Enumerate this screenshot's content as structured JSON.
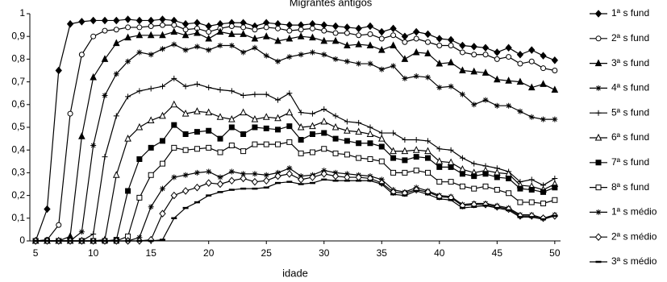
{
  "chart_data": {
    "type": "line",
    "title": "Migrantes antigos",
    "xlabel": "idade",
    "x": [
      5,
      6,
      7,
      8,
      9,
      10,
      11,
      12,
      13,
      14,
      15,
      16,
      17,
      18,
      19,
      20,
      21,
      22,
      23,
      24,
      25,
      26,
      27,
      28,
      29,
      30,
      31,
      32,
      33,
      34,
      35,
      36,
      37,
      38,
      39,
      40,
      41,
      42,
      43,
      44,
      45,
      46,
      47,
      48,
      49,
      50
    ],
    "xlim": [
      4.5,
      50.5
    ],
    "xticks": [
      5,
      10,
      15,
      20,
      25,
      30,
      35,
      40,
      45,
      50
    ],
    "ylim": [
      0,
      1
    ],
    "yticks": [
      0,
      {
        "value": 0.1,
        "label": "0,1"
      },
      {
        "value": 0.2,
        "label": "0,2"
      },
      {
        "value": 0.3,
        "label": "0,3"
      },
      {
        "value": 0.4,
        "label": "0,4"
      },
      {
        "value": 0.5,
        "label": "0,5"
      },
      {
        "value": 0.6,
        "label": "0,6"
      },
      {
        "value": 0.7,
        "label": "0,7"
      },
      {
        "value": 0.8,
        "label": "0,8"
      },
      {
        "value": 0.9,
        "label": "0,9"
      },
      1
    ],
    "grid": false,
    "legend": "right",
    "series": [
      {
        "name": "1ª s fund",
        "color": "#000000",
        "marker": "diamond",
        "values": [
          0,
          0.14,
          0.75,
          0.955,
          0.965,
          0.97,
          0.97,
          0.97,
          0.975,
          0.97,
          0.97,
          0.975,
          0.97,
          0.955,
          0.96,
          0.945,
          0.955,
          0.96,
          0.96,
          0.945,
          0.96,
          0.955,
          0.95,
          0.95,
          0.955,
          0.95,
          0.945,
          0.94,
          0.935,
          0.945,
          0.92,
          0.935,
          0.9,
          0.92,
          0.91,
          0.89,
          0.885,
          0.86,
          0.855,
          0.85,
          0.83,
          0.85,
          0.82,
          0.84,
          0.815,
          0.795
        ]
      },
      {
        "name": "2ª s fund",
        "color": "#000000",
        "marker": "circle-open",
        "values": [
          0,
          0.005,
          0.07,
          0.56,
          0.82,
          0.9,
          0.925,
          0.93,
          0.94,
          0.94,
          0.945,
          0.95,
          0.95,
          0.93,
          0.935,
          0.92,
          0.935,
          0.945,
          0.94,
          0.93,
          0.94,
          0.935,
          0.925,
          0.93,
          0.935,
          0.925,
          0.915,
          0.915,
          0.905,
          0.91,
          0.89,
          0.905,
          0.875,
          0.89,
          0.875,
          0.86,
          0.86,
          0.83,
          0.82,
          0.82,
          0.8,
          0.81,
          0.78,
          0.79,
          0.76,
          0.75
        ]
      },
      {
        "name": "3ª s fund",
        "color": "#000000",
        "marker": "triangle",
        "values": [
          0,
          0,
          0,
          0.02,
          0.46,
          0.72,
          0.8,
          0.87,
          0.895,
          0.905,
          0.905,
          0.905,
          0.92,
          0.905,
          0.915,
          0.89,
          0.92,
          0.91,
          0.91,
          0.89,
          0.9,
          0.88,
          0.89,
          0.9,
          0.895,
          0.88,
          0.88,
          0.86,
          0.865,
          0.86,
          0.84,
          0.86,
          0.8,
          0.83,
          0.825,
          0.78,
          0.785,
          0.75,
          0.745,
          0.74,
          0.71,
          0.705,
          0.7,
          0.675,
          0.69,
          0.665
        ]
      },
      {
        "name": "4ª s fund",
        "color": "#000000",
        "marker": "star",
        "values": [
          0,
          0,
          0,
          0,
          0.04,
          0.42,
          0.64,
          0.735,
          0.79,
          0.83,
          0.82,
          0.845,
          0.865,
          0.84,
          0.855,
          0.84,
          0.86,
          0.86,
          0.83,
          0.85,
          0.815,
          0.79,
          0.81,
          0.82,
          0.83,
          0.82,
          0.8,
          0.79,
          0.78,
          0.78,
          0.755,
          0.77,
          0.715,
          0.725,
          0.72,
          0.675,
          0.68,
          0.645,
          0.6,
          0.62,
          0.595,
          0.595,
          0.57,
          0.545,
          0.535,
          0.535
        ]
      },
      {
        "name": "5ª s fund",
        "color": "#000000",
        "marker": "plus",
        "values": [
          0,
          0,
          0,
          0,
          0,
          0.03,
          0.37,
          0.55,
          0.635,
          0.66,
          0.67,
          0.68,
          0.715,
          0.68,
          0.69,
          0.675,
          0.665,
          0.66,
          0.64,
          0.645,
          0.645,
          0.62,
          0.65,
          0.565,
          0.56,
          0.58,
          0.55,
          0.525,
          0.52,
          0.5,
          0.475,
          0.475,
          0.445,
          0.445,
          0.44,
          0.405,
          0.4,
          0.365,
          0.34,
          0.33,
          0.32,
          0.305,
          0.26,
          0.27,
          0.245,
          0.275
        ]
      },
      {
        "name": "6ª s fund",
        "color": "#000000",
        "marker": "triangle-open",
        "values": [
          0,
          0,
          0,
          0,
          0,
          0,
          0.005,
          0.29,
          0.45,
          0.5,
          0.53,
          0.55,
          0.6,
          0.56,
          0.57,
          0.565,
          0.545,
          0.535,
          0.565,
          0.535,
          0.545,
          0.54,
          0.565,
          0.5,
          0.505,
          0.525,
          0.5,
          0.485,
          0.48,
          0.47,
          0.45,
          0.395,
          0.395,
          0.4,
          0.395,
          0.35,
          0.345,
          0.315,
          0.3,
          0.31,
          0.3,
          0.295,
          0.245,
          0.24,
          0.225,
          0.25
        ]
      },
      {
        "name": "7ª s fund",
        "color": "#000000",
        "marker": "square",
        "values": [
          0,
          0,
          0,
          0,
          0,
          0,
          0,
          0.005,
          0.22,
          0.36,
          0.41,
          0.44,
          0.51,
          0.47,
          0.48,
          0.485,
          0.45,
          0.5,
          0.47,
          0.5,
          0.495,
          0.49,
          0.505,
          0.445,
          0.47,
          0.475,
          0.45,
          0.44,
          0.43,
          0.43,
          0.415,
          0.365,
          0.355,
          0.37,
          0.365,
          0.325,
          0.325,
          0.295,
          0.285,
          0.295,
          0.28,
          0.275,
          0.23,
          0.225,
          0.215,
          0.235
        ]
      },
      {
        "name": "8ª s fund",
        "color": "#000000",
        "marker": "square-open",
        "values": [
          0,
          0,
          0,
          0,
          0,
          0,
          0,
          0,
          0.02,
          0.19,
          0.29,
          0.34,
          0.41,
          0.4,
          0.405,
          0.41,
          0.39,
          0.42,
          0.395,
          0.425,
          0.425,
          0.425,
          0.435,
          0.385,
          0.39,
          0.405,
          0.385,
          0.38,
          0.365,
          0.36,
          0.35,
          0.3,
          0.3,
          0.31,
          0.3,
          0.26,
          0.26,
          0.24,
          0.23,
          0.24,
          0.225,
          0.21,
          0.17,
          0.17,
          0.165,
          0.18
        ]
      },
      {
        "name": "1ª s médio",
        "color": "#000000",
        "marker": "star",
        "values": [
          0,
          0,
          0,
          0,
          0,
          0,
          0,
          0,
          0,
          0.015,
          0.15,
          0.23,
          0.28,
          0.29,
          0.3,
          0.305,
          0.28,
          0.305,
          0.295,
          0.295,
          0.29,
          0.3,
          0.32,
          0.285,
          0.29,
          0.31,
          0.3,
          0.295,
          0.29,
          0.285,
          0.27,
          0.225,
          0.215,
          0.235,
          0.22,
          0.2,
          0.195,
          0.16,
          0.165,
          0.165,
          0.155,
          0.145,
          0.115,
          0.115,
          0.1,
          0.115
        ]
      },
      {
        "name": "2ª s médio",
        "color": "#000000",
        "marker": "diamond-open",
        "values": [
          0,
          0,
          0,
          0,
          0,
          0,
          0,
          0,
          0,
          0,
          0.005,
          0.12,
          0.2,
          0.22,
          0.235,
          0.255,
          0.25,
          0.265,
          0.275,
          0.26,
          0.265,
          0.285,
          0.295,
          0.27,
          0.28,
          0.295,
          0.285,
          0.28,
          0.28,
          0.275,
          0.255,
          0.215,
          0.21,
          0.225,
          0.215,
          0.195,
          0.19,
          0.155,
          0.16,
          0.16,
          0.15,
          0.14,
          0.11,
          0.11,
          0.1,
          0.11
        ]
      },
      {
        "name": "3ª s médio",
        "color": "#000000",
        "marker": "dash",
        "values": [
          0,
          0,
          0,
          0,
          0,
          0,
          0,
          0,
          0,
          0,
          0,
          0.005,
          0.1,
          0.145,
          0.17,
          0.2,
          0.215,
          0.225,
          0.23,
          0.23,
          0.235,
          0.255,
          0.26,
          0.25,
          0.255,
          0.27,
          0.265,
          0.265,
          0.265,
          0.265,
          0.25,
          0.205,
          0.2,
          0.22,
          0.205,
          0.185,
          0.18,
          0.145,
          0.15,
          0.155,
          0.145,
          0.135,
          0.105,
          0.105,
          0.095,
          0.11
        ]
      }
    ]
  }
}
